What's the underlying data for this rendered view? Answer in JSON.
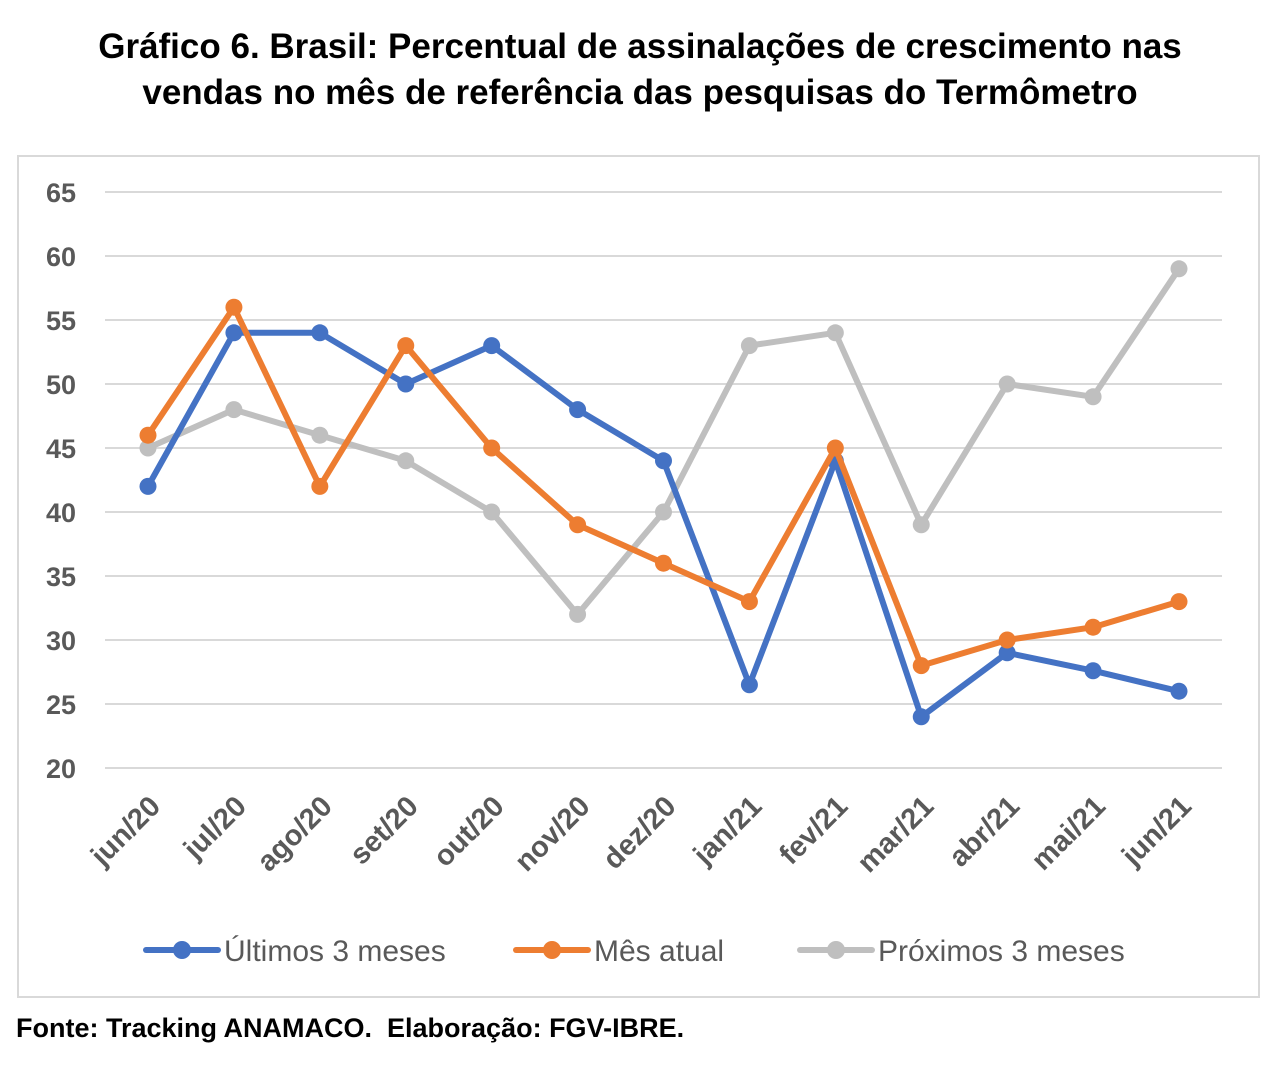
{
  "title_line1": "Gráfico 6. Brasil: Percentual de assinalações de crescimento nas",
  "title_line2": "vendas no mês de referência das pesquisas do Termômetro",
  "source": "Fonte: Tracking ANAMACO.  Elaboração: FGV-IBRE.",
  "chart_data": {
    "type": "line",
    "categories": [
      "jun/20",
      "jul/20",
      "ago/20",
      "set/20",
      "out/20",
      "nov/20",
      "dez/20",
      "jan/21",
      "fev/21",
      "mar/21",
      "abr/21",
      "mai/21",
      "jun/21"
    ],
    "ylim": [
      20,
      65
    ],
    "yticks": [
      "20",
      "25",
      "30",
      "35",
      "40",
      "45",
      "50",
      "55",
      "60",
      "65"
    ],
    "grid": true,
    "legend_position": "bottom",
    "series": [
      {
        "name": "Últimos 3 meses",
        "color": "#4472c4",
        "values": [
          42,
          54,
          54,
          50,
          53,
          48,
          44,
          26.5,
          44,
          24,
          29,
          27.6,
          26
        ]
      },
      {
        "name": "Mês atual",
        "color": "#ed7d31",
        "values": [
          46,
          56,
          42,
          53,
          45,
          39,
          36,
          33,
          45,
          28,
          30,
          31,
          33
        ]
      },
      {
        "name": "Próximos 3 meses",
        "color": "#bfbfbf",
        "values": [
          45,
          48,
          46,
          44,
          40,
          32,
          40,
          53,
          54,
          39,
          50,
          49,
          59
        ]
      }
    ]
  }
}
